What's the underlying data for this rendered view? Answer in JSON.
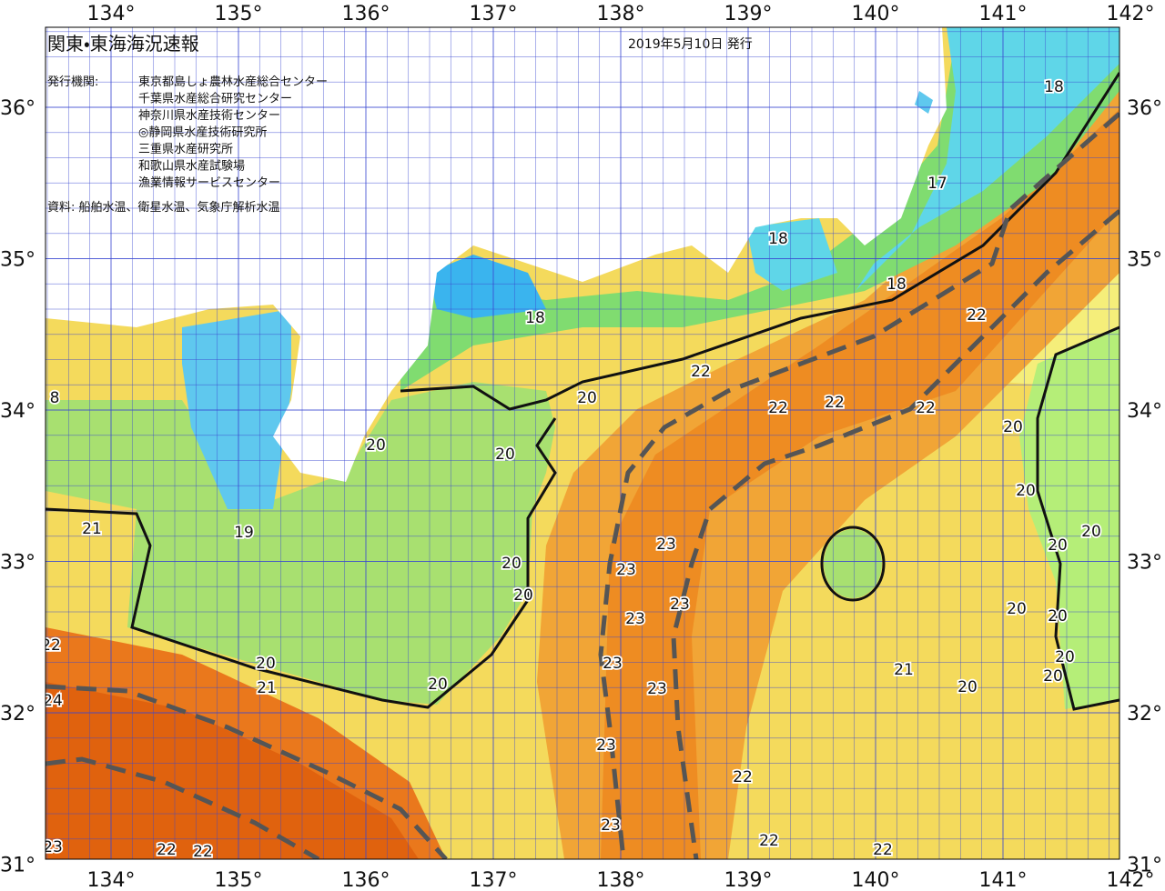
{
  "header": {
    "title": "関東・東海海況速報",
    "date": "2019年5月10日 発行",
    "issuer_label": "発行機関:",
    "issuers": [
      "東京都島しょ農林水産総合センター",
      "千葉県水産総合研究センター",
      "神奈川県水産技術センター",
      "◎静岡県水産技術研究所",
      "三重県水産研究所",
      "和歌山県水産試験場",
      "漁業情報サービスセンター"
    ],
    "sources": "資料: 船舶水温、衛星水温、気象庁解析水温"
  },
  "map": {
    "lon_ticks": [
      {
        "value": 134,
        "label": "134°"
      },
      {
        "value": 135,
        "label": "135°"
      },
      {
        "value": 136,
        "label": "136°"
      },
      {
        "value": 137,
        "label": "137°"
      },
      {
        "value": 138,
        "label": "138°"
      },
      {
        "value": 139,
        "label": "139°"
      },
      {
        "value": 140,
        "label": "140°"
      },
      {
        "value": 141,
        "label": "141°"
      },
      {
        "value": 142,
        "label": "142°"
      }
    ],
    "lat_ticks": [
      {
        "value": 36,
        "label": "36°"
      },
      {
        "value": 35,
        "label": "35°"
      },
      {
        "value": 34,
        "label": "34°"
      },
      {
        "value": 33,
        "label": "33°"
      },
      {
        "value": 32,
        "label": "32°"
      },
      {
        "value": 31,
        "label": "31°"
      }
    ],
    "contour_labels": [
      18,
      17,
      18,
      18,
      22,
      18,
      8,
      22,
      20,
      22,
      22,
      22,
      20,
      20,
      20,
      20,
      21,
      19,
      20,
      23,
      20,
      20,
      23,
      20,
      23,
      20,
      20,
      23,
      22,
      23,
      20,
      20,
      21,
      20,
      23,
      21,
      20,
      20,
      24,
      23,
      22,
      23,
      22,
      22,
      23,
      22,
      22
    ]
  }
}
